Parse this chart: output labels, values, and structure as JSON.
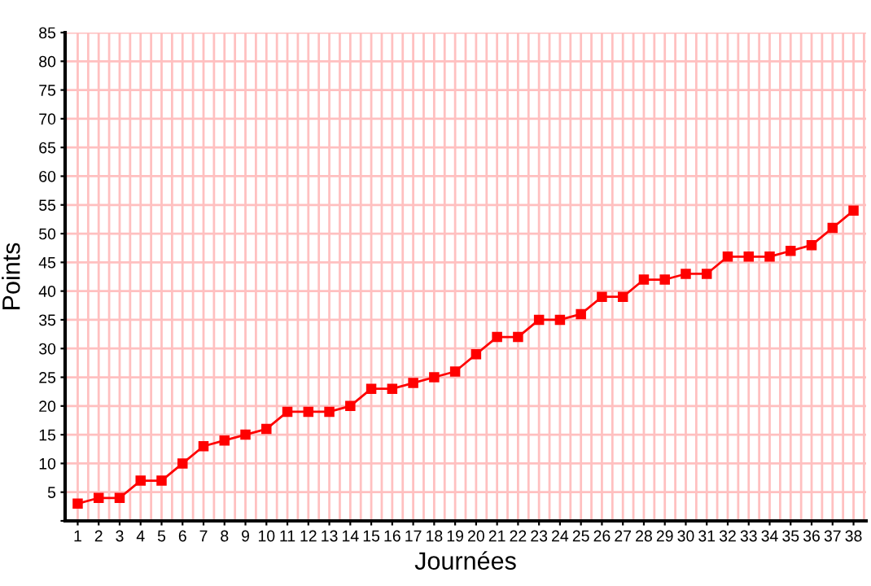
{
  "chart_data": {
    "type": "line",
    "xlabel": "Journées",
    "ylabel": "Points",
    "categories": [
      "1",
      "2",
      "3",
      "4",
      "5",
      "6",
      "7",
      "8",
      "9",
      "10",
      "11",
      "12",
      "13",
      "14",
      "15",
      "16",
      "17",
      "18",
      "19",
      "20",
      "21",
      "22",
      "23",
      "24",
      "25",
      "26",
      "27",
      "28",
      "29",
      "30",
      "31",
      "32",
      "33",
      "34",
      "35",
      "36",
      "37",
      "38"
    ],
    "series": [
      {
        "color": "#ff0000",
        "values": [
          3,
          4,
          4,
          7,
          7,
          10,
          13,
          14,
          15,
          16,
          19,
          19,
          19,
          20,
          23,
          23,
          24,
          25,
          26,
          29,
          32,
          32,
          35,
          35,
          36,
          39,
          39,
          42,
          42,
          43,
          43,
          46,
          46,
          46,
          47,
          48,
          51,
          54
        ]
      }
    ],
    "ylim": [
      0,
      85
    ],
    "yticks": [
      {
        "value": 0,
        "label": null
      },
      5,
      10,
      15,
      20,
      25,
      30,
      35,
      40,
      45,
      50,
      55,
      60,
      65,
      70,
      75,
      80,
      85
    ],
    "grid": true,
    "marker": "square",
    "line_style": "solid",
    "legend": false
  }
}
